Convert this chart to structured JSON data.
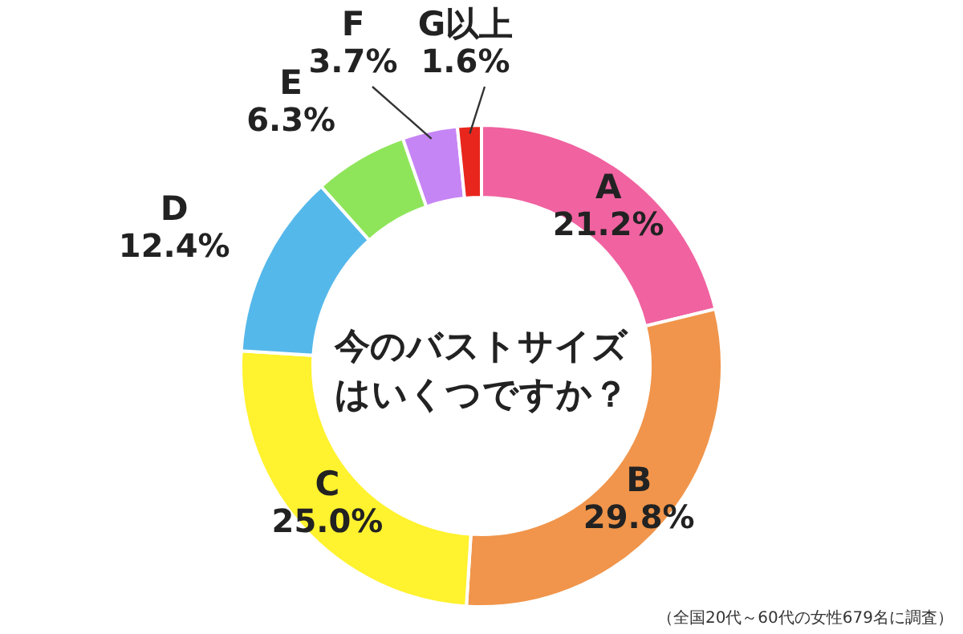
{
  "chart_data": {
    "type": "donut",
    "title": "今のバストサイズはいくつですか？",
    "categories": [
      "A",
      "B",
      "C",
      "D",
      "E",
      "F",
      "G以上"
    ],
    "values": [
      21.2,
      29.8,
      25.0,
      12.4,
      6.3,
      3.7,
      1.6
    ],
    "colors": [
      "#f062a0",
      "#f0954b",
      "#fff22e",
      "#55b8ea",
      "#8fe55a",
      "#c685f5",
      "#e8261d"
    ],
    "value_labels": [
      "21.2%",
      "29.8%",
      "25.0%",
      "12.4%",
      "6.3%",
      "3.7%",
      "1.6%"
    ],
    "annotations": [
      "（全国20代～60代の女性679名に調査）"
    ]
  }
}
